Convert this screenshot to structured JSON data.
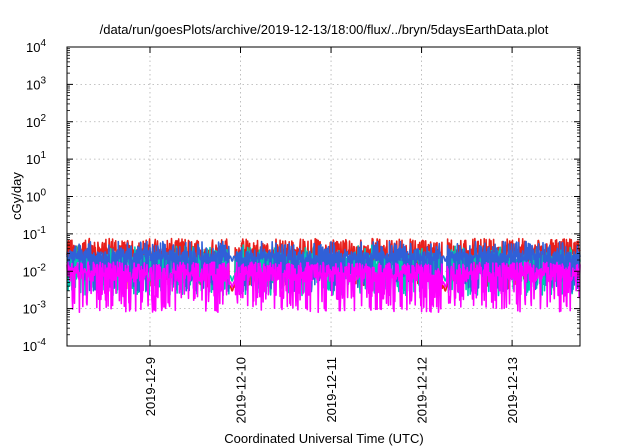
{
  "chart_data": {
    "type": "line",
    "title": "/data/run/goesPlots/archive/2019-12-13/18:00/flux/../bryn/5daysEarthData.plot",
    "xlabel": "Coordinated Universal Time (UTC)",
    "ylabel": "cGy/day",
    "y_scale": "log",
    "ylim": [
      0.0001,
      10000
    ],
    "y_ticks": [
      {
        "value": 0.0001,
        "mant": "10",
        "exp": "-4"
      },
      {
        "value": 0.001,
        "mant": "10",
        "exp": "-3"
      },
      {
        "value": 0.01,
        "mant": "10",
        "exp": "-2"
      },
      {
        "value": 0.1,
        "mant": "10",
        "exp": "-1"
      },
      {
        "value": 1,
        "mant": "10",
        "exp": "0"
      },
      {
        "value": 10,
        "mant": "10",
        "exp": "1"
      },
      {
        "value": 100,
        "mant": "10",
        "exp": "2"
      },
      {
        "value": 1000,
        "mant": "10",
        "exp": "3"
      },
      {
        "value": 10000,
        "mant": "10",
        "exp": "4"
      }
    ],
    "xlim": [
      "2019-12-08T02:00",
      "2019-12-13T18:00"
    ],
    "x_ticks": [
      {
        "value": "2019-12-09T00:00",
        "label": "2019-12-9"
      },
      {
        "value": "2019-12-10T00:00",
        "label": "2019-12-10"
      },
      {
        "value": "2019-12-11T00:00",
        "label": "2019-12-11"
      },
      {
        "value": "2019-12-12T00:00",
        "label": "2019-12-12"
      },
      {
        "value": "2019-12-13T00:00",
        "label": "2019-12-13"
      }
    ],
    "grid": true,
    "gaps": [
      [
        "2019-12-09T21:00",
        "2019-12-09T22:30"
      ],
      [
        "2019-12-12T05:30",
        "2019-12-12T06:45"
      ]
    ],
    "series": [
      {
        "color": "#e8201c",
        "base": 0.03,
        "noise_up": 0.33,
        "noise_down": 0.2,
        "gap_level": 0.0035
      },
      {
        "color": "#00c8b0",
        "base": 0.02,
        "noise_up": 0.1,
        "noise_down": 0.28,
        "gap_level": 0.0065
      },
      {
        "color": "#3060d8",
        "base": 0.025,
        "noise_up": 0.2,
        "noise_down": 0.25,
        "gap_level": 0.022
      },
      {
        "color": "#ff00ff",
        "base": 0.007,
        "noise_up": 0.5,
        "noise_down": 0.2,
        "gap_level": 0.0045
      }
    ]
  }
}
